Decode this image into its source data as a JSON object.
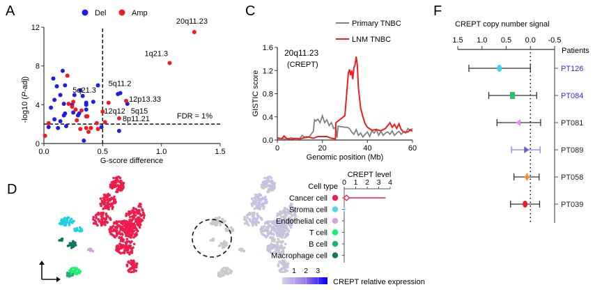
{
  "panels": {
    "A": "A",
    "C": "C",
    "D": "D",
    "F": "F"
  },
  "colors": {
    "del": "#1f1fe0",
    "amp": "#ef1c24",
    "primary": "#808080",
    "lnm": "#ef1c24",
    "patient_highlight": "#2b2bd9"
  },
  "chart_data": [
    {
      "id": "A",
      "type": "scatter",
      "title": "",
      "xlabel": "G-score difference",
      "ylabel": "-log10 (P-adj)",
      "ylabel_parts": [
        "-log10 (",
        "P",
        "-adj)"
      ],
      "xlim": [
        0,
        1.5
      ],
      "ylim": [
        0,
        12
      ],
      "xticks": [
        "0.0",
        "0.5",
        "1.0",
        "1.5"
      ],
      "yticks": [
        "0",
        "4",
        "8",
        "12"
      ],
      "xtick_values": [
        0,
        0.5,
        1.0,
        1.5
      ],
      "ytick_values": [
        0,
        4,
        8,
        12
      ],
      "legend": [
        {
          "name": "Del",
          "color": "#1f1fe0"
        },
        {
          "name": "Amp",
          "color": "#ef1c24"
        }
      ],
      "legend_position": "top",
      "threshold_x": 0.5,
      "threshold_y": 2.0,
      "threshold_label": "FDR = 1%",
      "series": [
        {
          "name": "Del",
          "points": [
            [
              0.04,
              1.7
            ],
            [
              0.06,
              3.7
            ],
            [
              0.08,
              6.7
            ],
            [
              0.09,
              4.5
            ],
            [
              0.09,
              2.5
            ],
            [
              0.11,
              5.9
            ],
            [
              0.12,
              1.6
            ],
            [
              0.14,
              5.0
            ],
            [
              0.14,
              2.3
            ],
            [
              0.16,
              7.5
            ],
            [
              0.17,
              4.1
            ],
            [
              0.17,
              2.9
            ],
            [
              0.18,
              6.0
            ],
            [
              0.18,
              3.1
            ],
            [
              0.19,
              1.8
            ],
            [
              0.24,
              4.0
            ],
            [
              0.25,
              3.2
            ],
            [
              0.26,
              5.0
            ],
            [
              0.29,
              2.9
            ],
            [
              0.3,
              3.1
            ],
            [
              0.31,
              5.5
            ],
            [
              0.33,
              4.9
            ],
            [
              0.34,
              0.3
            ],
            [
              0.36,
              4.2
            ],
            [
              0.36,
              4.0
            ],
            [
              0.36,
              3.5
            ],
            [
              0.42,
              4.3
            ],
            [
              0.46,
              6.0
            ],
            [
              0.49,
              1.7
            ],
            [
              0.63,
              5.1
            ],
            [
              0.65,
              5.2
            ],
            [
              0.64,
              1.3
            ],
            [
              0.71,
              4.1
            ]
          ]
        },
        {
          "name": "Amp",
          "points": [
            [
              0.01,
              0.8
            ],
            [
              0.04,
              2.1
            ],
            [
              0.2,
              7.0
            ],
            [
              0.21,
              4.1
            ],
            [
              0.24,
              3.8
            ],
            [
              0.25,
              4.3
            ],
            [
              0.27,
              3.5
            ],
            [
              0.28,
              2.4
            ],
            [
              0.31,
              1.5
            ],
            [
              0.32,
              3.4
            ],
            [
              0.36,
              2.8
            ],
            [
              0.36,
              1.6
            ],
            [
              0.37,
              2.8
            ],
            [
              0.38,
              1.2
            ],
            [
              0.4,
              1.6
            ],
            [
              0.45,
              2.1
            ],
            [
              0.46,
              1.5
            ],
            [
              0.5,
              3.3
            ],
            [
              0.52,
              2.2
            ],
            [
              0.55,
              4.2
            ],
            [
              0.64,
              2.6
            ],
            [
              0.7,
              4.4
            ],
            [
              1.07,
              8.3
            ],
            [
              1.28,
              11.5
            ]
          ]
        }
      ],
      "annotations": [
        {
          "text": "20q11.23",
          "x": 1.28,
          "y": 11.5
        },
        {
          "text": "1q21.3",
          "x": 1.07,
          "y": 8.3
        },
        {
          "text": "5q11.2",
          "x": 0.65,
          "y": 5.2
        },
        {
          "text": "5q21.3",
          "x": 0.63,
          "y": 5.1
        },
        {
          "text": "12p13.33",
          "x": 0.7,
          "y": 4.4
        },
        {
          "text": "12q12",
          "x": 0.5,
          "y": 3.3
        },
        {
          "text": "5q15",
          "x": 0.71,
          "y": 4.1
        },
        {
          "text": "8p11.21",
          "x": 0.64,
          "y": 2.6
        }
      ]
    },
    {
      "id": "C",
      "type": "line",
      "xlabel": "Genomic position (Mb)",
      "ylabel": "GISTIC score",
      "xlim": [
        0,
        60
      ],
      "ylim": [
        0,
        1.6
      ],
      "xticks": [
        "0",
        "20",
        "40",
        "60"
      ],
      "yticks": [
        "0.0",
        "0.4",
        "0.8",
        "1.2",
        "1.6"
      ],
      "xtick_values": [
        0,
        20,
        40,
        60
      ],
      "ytick_values": [
        0,
        0.4,
        0.8,
        1.2,
        1.6
      ],
      "inset_label": "20q11.23",
      "inset_sublabel": "(CREPT)",
      "legend_position": "top-right",
      "series": [
        {
          "name": "Primary TNBC",
          "color": "#808080",
          "x": [
            0,
            2,
            4,
            6,
            8,
            10,
            11,
            12,
            13,
            14,
            15,
            16,
            16.5,
            17,
            18,
            19,
            20,
            21,
            22,
            23,
            24,
            25,
            26,
            26.5,
            27,
            30,
            31,
            32,
            33,
            34,
            35,
            36,
            37,
            38,
            39,
            40,
            41,
            42,
            43,
            44,
            45,
            46,
            47,
            48,
            49,
            50,
            51,
            52,
            53,
            54,
            55,
            56,
            57,
            58,
            59,
            60
          ],
          "y": [
            0.02,
            0.03,
            0.01,
            0.04,
            0.02,
            0.03,
            0.08,
            0.05,
            0.06,
            0.05,
            0.1,
            0.15,
            0.35,
            0.33,
            0.36,
            0.3,
            0.42,
            0.3,
            0.35,
            0.25,
            0.3,
            0.2,
            0.22,
            0.04,
            0.24,
            0.22,
            0.22,
            0.2,
            0.14,
            0.1,
            0.18,
            0.08,
            0.12,
            0.05,
            0.1,
            0.14,
            0.06,
            0.16,
            0.12,
            0.18,
            0.08,
            0.15,
            0.08,
            0.12,
            0.14,
            0.1,
            0.16,
            0.08,
            0.12,
            0.15,
            0.1,
            0.14,
            0.12,
            0.2,
            0.16,
            0.2
          ]
        },
        {
          "name": "LNM TNBC",
          "color": "#ef1c24",
          "x": [
            0,
            2,
            3,
            4,
            6,
            8,
            10,
            12,
            14,
            16,
            18,
            20,
            22,
            24,
            25.8,
            26,
            30,
            31,
            31.5,
            32,
            32.5,
            33,
            33.5,
            34,
            34.5,
            35,
            35.5,
            36,
            37,
            38,
            39,
            40,
            42,
            44,
            46,
            48,
            50,
            51,
            52,
            53,
            54,
            55,
            56,
            58,
            59,
            60
          ],
          "y": [
            0.04,
            0.02,
            0.07,
            0.03,
            0.01,
            0.03,
            0.02,
            0.04,
            0.05,
            0.03,
            0.06,
            0.06,
            0.06,
            0.03,
            0.02,
            0.3,
            0.42,
            0.9,
            1.15,
            1.22,
            1.12,
            1.2,
            1.05,
            1.25,
            1.3,
            1.44,
            1.3,
            0.9,
            0.55,
            0.4,
            0.28,
            0.22,
            0.17,
            0.18,
            0.16,
            0.2,
            0.3,
            0.22,
            0.27,
            0.2,
            0.28,
            0.18,
            0.14,
            0.14,
            0.18,
            0.15
          ]
        }
      ]
    },
    {
      "id": "D-level",
      "type": "bar",
      "title": "CREPT level",
      "row_header": "Cell type",
      "xlim": [
        0,
        4
      ],
      "xticks": [
        "0",
        "1",
        "2",
        "3",
        "4"
      ],
      "xtick_values": [
        0,
        1,
        2,
        3,
        4
      ],
      "categories": [
        "Cancer cell",
        "Stroma cell",
        "Endothelial cell",
        "T cell",
        "B cell",
        "Macrophage cell"
      ],
      "category_colors": [
        "#ef1c4b",
        "#4fd9e8",
        "#d59fe0",
        "#0ff06e",
        "#1db36e",
        "#0f7560"
      ],
      "median": [
        0.2,
        0.02,
        0,
        0,
        0,
        0
      ],
      "max": [
        3.6,
        0.15,
        0,
        0,
        0,
        0
      ]
    },
    {
      "id": "D-colorbar",
      "type": "heatmap",
      "label": "CREPT relative expression",
      "ticks": [
        "1",
        "2",
        "3"
      ],
      "tick_values": [
        1,
        2,
        3
      ],
      "range": [
        0,
        3.8
      ],
      "colors": [
        "#d9d4e8",
        "#0000ff"
      ]
    },
    {
      "id": "F",
      "type": "scatter",
      "title": "CREPT copy number signal",
      "axis_label_right": "Patients",
      "xlim": [
        1.5,
        -0.5
      ],
      "xticks": [
        "1.5",
        "1.0",
        "0.5",
        "0.0",
        "-0.5"
      ],
      "xtick_values": [
        1.5,
        1.0,
        0.5,
        0.0,
        -0.5
      ],
      "reference_x": 0.0,
      "categories": [
        "PT126",
        "PT084",
        "PT081",
        "PT089",
        "PT058",
        "PT039"
      ],
      "category_label_colors": [
        "#2b2bd9",
        "#2b2bd9",
        "#222222",
        "#222222",
        "#222222",
        "#222222"
      ],
      "estimate": [
        0.64,
        0.37,
        0.23,
        0.1,
        0.07,
        0.11
      ],
      "ci_low": [
        1.27,
        0.86,
        0.69,
        0.39,
        0.34,
        0.41
      ],
      "ci_high": [
        0.0,
        -0.13,
        -0.21,
        -0.2,
        -0.18,
        -0.19
      ],
      "marker_shapes": [
        "ellipse",
        "square",
        "triangle-left",
        "triangle-right",
        "diamond",
        "ellipse"
      ],
      "marker_colors": [
        "#3ad6ee",
        "#2cbf6a",
        "#f07ef5",
        "#6a5acd",
        "#ff8a33",
        "#ef1c24"
      ],
      "errorbar_colors": [
        "#333333",
        "#333333",
        "#333333",
        "#8a7fe0",
        "#333333",
        "#333333"
      ]
    }
  ],
  "tsne": {
    "arrow_label": "",
    "circle_label": ""
  }
}
